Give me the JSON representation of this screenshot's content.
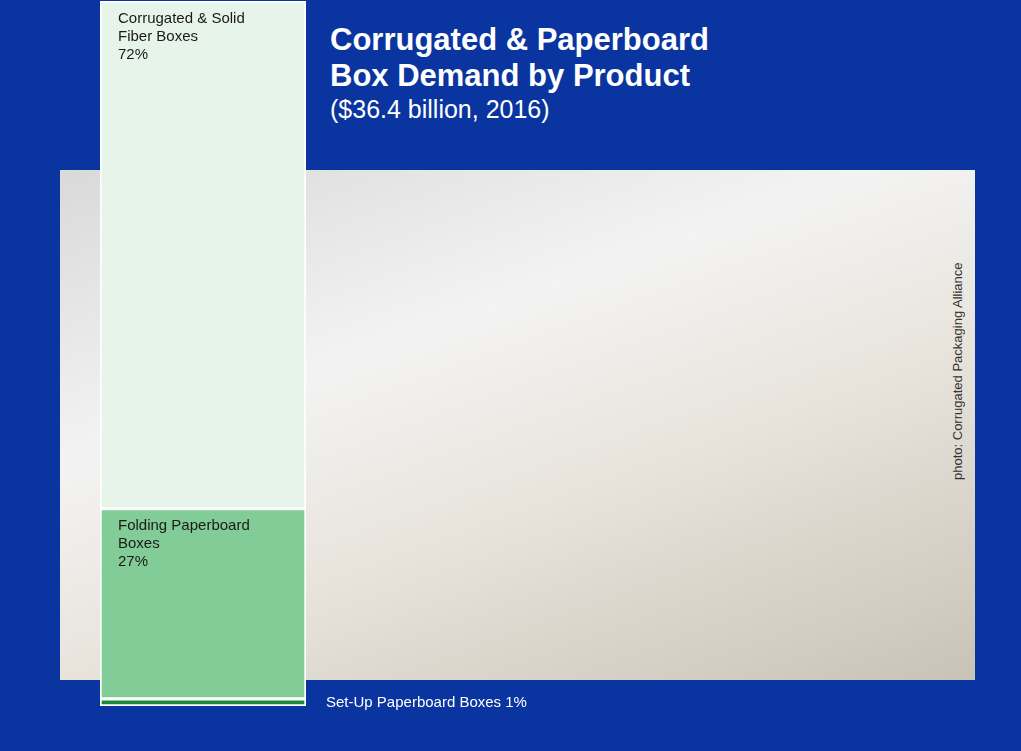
{
  "chart_data": {
    "type": "bar",
    "title": "Corrugated & Paperboard Box Demand by Product",
    "subtitle": "($36.4 billion, 2016)",
    "annotations": [
      "photo: Corrugated Packaging Alliance"
    ],
    "categories": [
      null
    ],
    "series": [
      {
        "name": "Set-Up Paperboard Boxes",
        "color": "#1a8a3c",
        "values": [
          1
        ],
        "value_labels": [
          "1%"
        ]
      },
      {
        "name": "Folding Paperboard Boxes",
        "color": "#82cd97",
        "values": [
          27
        ],
        "value_labels": [
          "27%"
        ]
      },
      {
        "name": "Corrugated & Solid Fiber Boxes",
        "color": "#e6f4ea",
        "values": [
          72
        ],
        "value_labels": [
          "72%"
        ]
      }
    ],
    "stacked": true,
    "data_labels": true,
    "tick_labels": false,
    "grid": false,
    "ylim": [
      0,
      100
    ]
  }
}
